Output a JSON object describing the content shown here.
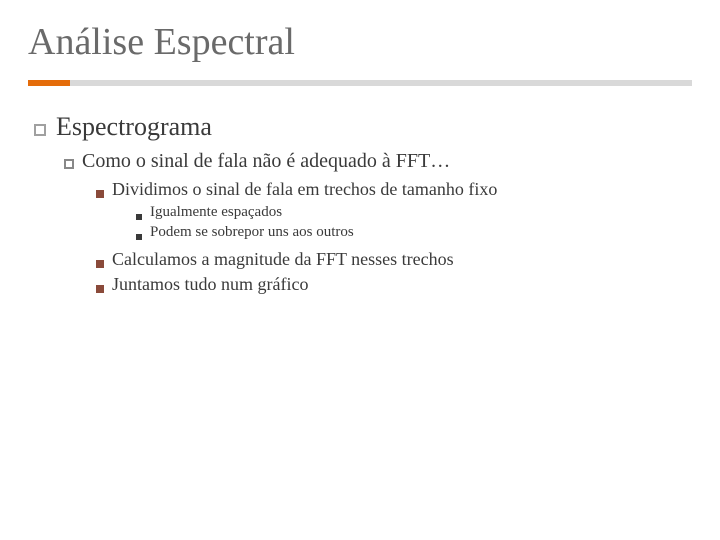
{
  "title": "Análise Espectral",
  "colors": {
    "accent": "#e46c0a",
    "bar_bg": "#d9d9d9",
    "title_text": "#6a6a6a",
    "body_text": "#3a3a3a",
    "l3_bullet": "#8a4a3a"
  },
  "typography": {
    "title_fontsize": 38,
    "l1_fontsize": 26,
    "l2_fontsize": 20,
    "l3_fontsize": 18,
    "l4_fontsize": 15,
    "family": "Georgia / serif"
  },
  "content": {
    "l1": "Espectrograma",
    "l2": "Como o sinal de fala não é adequado à FFT…",
    "l3a": "Dividimos o sinal de fala em trechos de tamanho fixo",
    "l4a": "Igualmente espaçados",
    "l4b": "Podem se sobrepor uns aos outros",
    "l3b": "Calculamos a magnitude da FFT nesses trechos",
    "l3c": "Juntamos tudo num gráfico"
  }
}
